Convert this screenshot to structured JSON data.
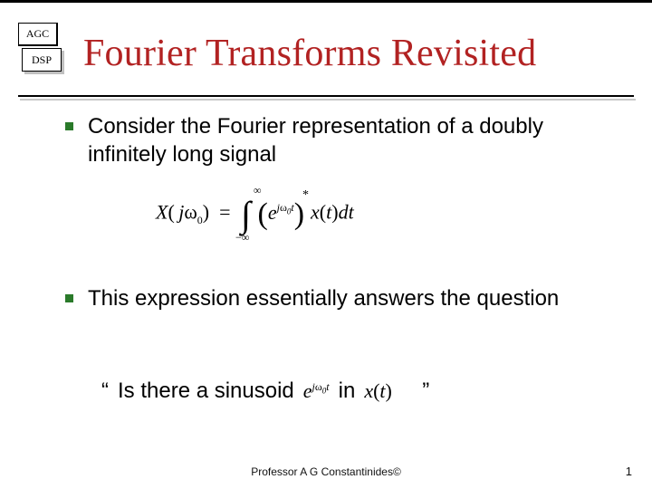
{
  "colors": {
    "title": "#b22222",
    "bullet": "#2a7a2a",
    "text": "#000000",
    "rule": "#000000",
    "rule_shadow": "#c8c8c8",
    "background": "#ffffff"
  },
  "typography": {
    "title_family": "Times New Roman",
    "title_fontsize": 42,
    "body_family": "Verdana",
    "body_fontsize": 24,
    "footer_fontsize": 12
  },
  "badge": {
    "front_label": "AGC",
    "back_label": "DSP"
  },
  "title": "Fourier Transforms Revisited",
  "bullets": [
    "Consider the Fourier representation of a doubly infinitely long signal",
    "This expression essentially answers the question"
  ],
  "equation": {
    "lhs_X": "X",
    "lhs_arg_j": "j",
    "lhs_arg_omega": "ω",
    "lhs_arg_sub": "0",
    "eq_sign": "=",
    "int_symbol": "∫",
    "int_lower": "−∞",
    "int_upper": "∞",
    "inner_e": "e",
    "inner_exp_j": "j",
    "inner_exp_omega": "ω",
    "inner_exp_sub": "0",
    "inner_exp_t": "t",
    "conj_star": "*",
    "x": "x",
    "x_arg": "t",
    "dt": "dt"
  },
  "quote": {
    "open": "“",
    "lead": "Is there a sinusoid",
    "mid_e": "e",
    "mid_exp_j": "j",
    "mid_exp_omega": "ω",
    "mid_exp_sub": "0",
    "mid_exp_t": "t",
    "in_word": "in",
    "tail_x": "x",
    "tail_arg": "t",
    "close": "”"
  },
  "footer": "Professor A G Constantinides©",
  "page_number": "1"
}
